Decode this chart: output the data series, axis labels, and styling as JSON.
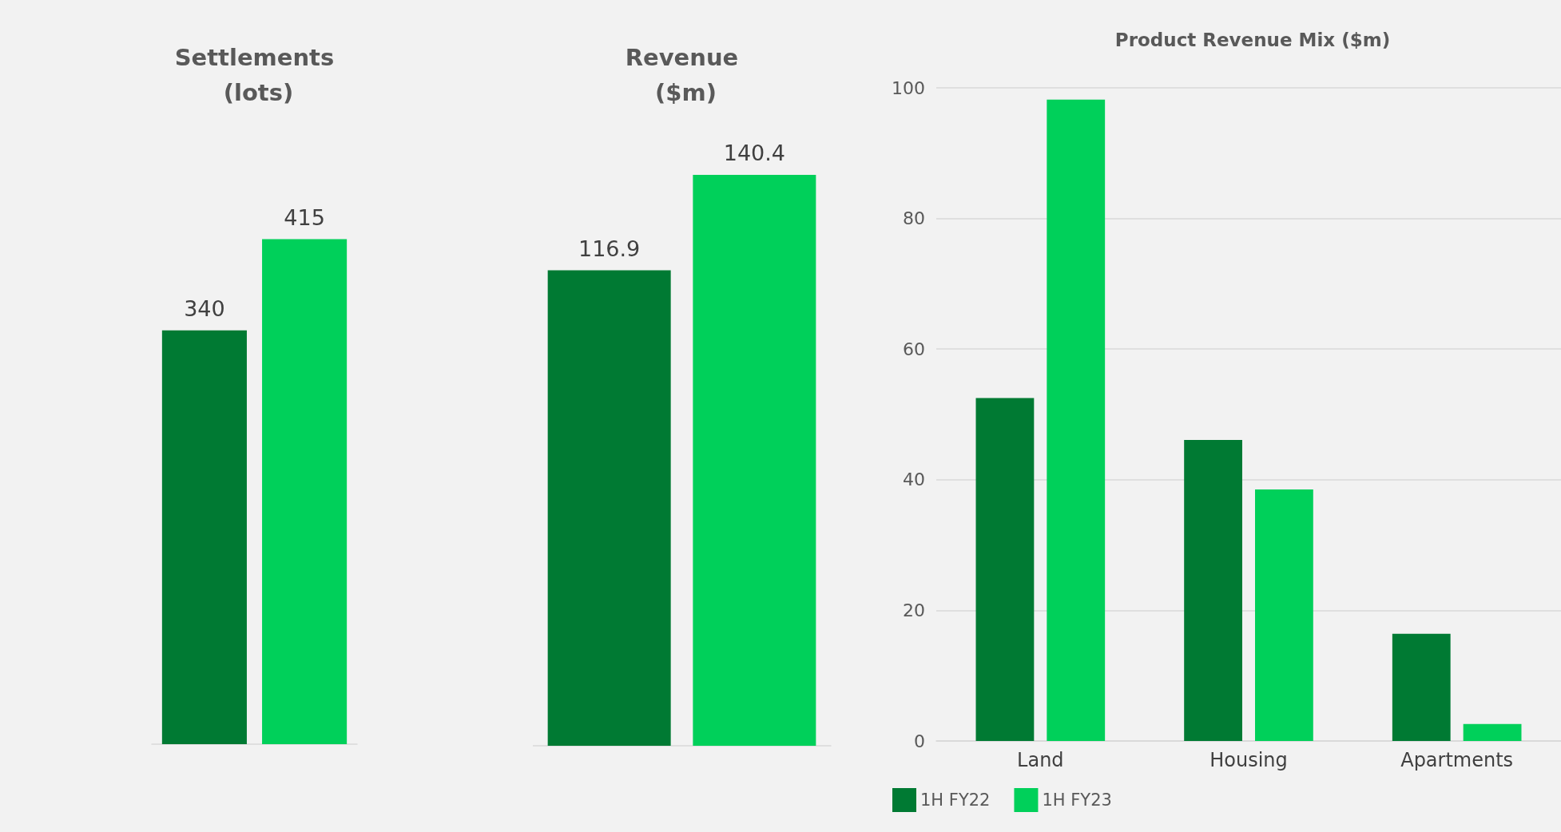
{
  "chart_data": [
    {
      "type": "bar",
      "title": "Settlements (lots)",
      "categories": [
        null
      ],
      "series": [
        {
          "color": "#007a33",
          "values": [
            340
          ]
        },
        {
          "color": "#00d05a",
          "values": [
            415
          ]
        }
      ],
      "data_labels": true,
      "tick_labels": false,
      "grid": false,
      "legend": false
    },
    {
      "type": "bar",
      "title": "Revenue ($m)",
      "categories": [
        null
      ],
      "series": [
        {
          "color": "#007a33",
          "values": [
            116.9
          ]
        },
        {
          "color": "#00d05a",
          "values": [
            140.4
          ]
        }
      ],
      "data_labels": true,
      "tick_labels": false,
      "grid": false,
      "legend": false
    },
    {
      "type": "bar",
      "title": "Product Revenue Mix ($m)",
      "categories": [
        "Land",
        "Housing",
        "Apartments"
      ],
      "series": [
        {
          "name": "1H FY22",
          "color": "#007a33",
          "values": [
            52.5,
            46.1,
            16.4
          ]
        },
        {
          "name": "1H FY23",
          "color": "#00d05a",
          "values": [
            98.2,
            38.5,
            2.6
          ]
        }
      ],
      "ylim": [
        0,
        100
      ],
      "yticks": [
        0,
        20,
        40,
        60,
        80,
        100
      ],
      "grid": "y",
      "legend": "bottom left"
    }
  ]
}
